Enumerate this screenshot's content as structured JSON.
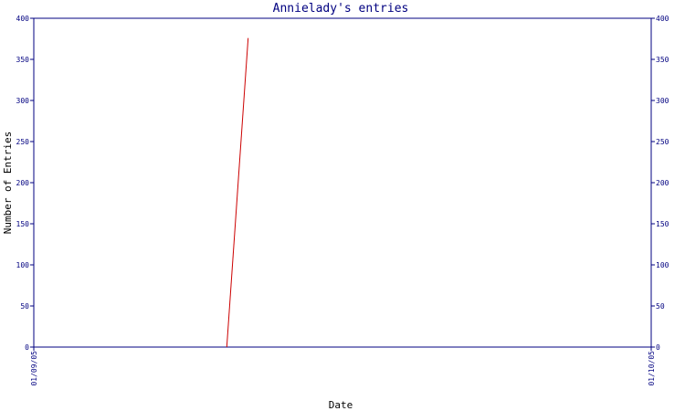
{
  "chart_data": {
    "type": "line",
    "title": "Annielady's entries",
    "xlabel": "Date",
    "ylabel": "Number of Entries",
    "x_ticks": [
      "01/09/05",
      "01/10/05"
    ],
    "y_ticks": [
      0,
      50,
      100,
      150,
      200,
      250,
      300,
      350,
      400
    ],
    "ylim": [
      0,
      400
    ],
    "xlim": [
      "2005-01-09",
      "2005-01-10"
    ],
    "grid": false,
    "series": [
      {
        "x": [
          "2005-01-09T07:30",
          "2005-01-09T08:20"
        ],
        "values": [
          0,
          376
        ]
      }
    ],
    "colors": {
      "axis": "#000080",
      "line": "#cc0000",
      "title": "#000080",
      "axis_title": "#000000"
    }
  }
}
